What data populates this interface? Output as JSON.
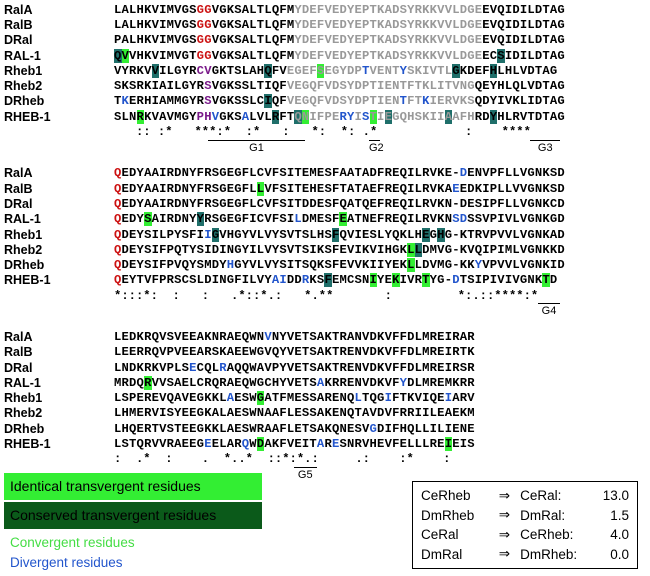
{
  "blocks": [
    {
      "rows": [
        {
          "name": "RalA",
          "seq": "LALHKVIMVGSGGVGKSALTLQFMYDEFVEDYEPTKADSYRKKVVLDGEEVQIDILDTAG"
        },
        {
          "name": "RalB",
          "seq": "LALHKVIMVGSGGVGKSALTLQFMYDEFVEDYEPTKADSYRKKVVLDGEEVQIDILDTAG"
        },
        {
          "name": "DRal",
          "seq": "PALHKVIMVGSGGVGKSALTLQFMYDEFVEDYEPTKADSYRKKVVLDGEEVQIDILDTAG"
        },
        {
          "name": "RAL-1",
          "seq": "QVVHKVIMVGTGGVGKSALTLQFMYDEFVEDYEPTKADSYRKKVVLDGEECSIDILDTAG"
        },
        {
          "name": "Rheb1",
          "seq": "VYRKVVILGYRCVGKTSLAHQFVEGEFSEGYDPTVENTYSKIVTLGKDEFHLHLVDTAG"
        },
        {
          "name": "Rheb2",
          "seq": "SKSRKIAILGYRSVGKSSLTIQFVEGQFVDSYDPTIENTFTKLITVNGQEYHLQLVDTAG"
        },
        {
          "name": "DRheb",
          "seq": "TKERHIAMMGYRSVGKSSLCIQFVEGQFVDSYDPTIENTFTKIERVKSQDYIVKLIDTAG"
        },
        {
          "name": "RHEB-1",
          "seq": "SLNRKVAVMGYPHVGKSALVLRFTQNIFPERYISTIEGQHSKIIAAFHRDYHLRVTDTAG"
        }
      ],
      "cons": "   :: :*   ***:*  :*   :   *:  *: .*            :    ****",
      "motifs": [
        "G1",
        "G2",
        "G3"
      ]
    },
    {
      "rows": [
        {
          "name": "RalA",
          "seq": "QEDYAAIRDNYFRSGEGFLCVFSITEMESFAATADFREQILRVKE-DENVPFLLVGNKSD"
        },
        {
          "name": "RalB",
          "seq": "QEDYAAIRDNYFRSGEGFLLVFSITEHESFTATAEFREQILRVKAEEDKIPLLVVGNKSD"
        },
        {
          "name": "DRal",
          "seq": "QEDYAAIRDNYFRSGEGFLCVFSITDDESFQATQEFREQILRVKN-DESIPFLLVGNKCD"
        },
        {
          "name": "RAL-1",
          "seq": "QEDYSAIRDNYYRSGEGFICVFSILDMESFEATNEFREQILRVKNSDSSVPIVLVGNKGD"
        },
        {
          "name": "Rheb1",
          "seq": "QDEYSILPYSFIIGVHGYVLVYSVTSLHSFQVIESLYQKLHEGHG-KTRVPVVLVGNKAD"
        },
        {
          "name": "Rheb2",
          "seq": "QDEYSIFPQTYSIDINGYILVYSVTSIKSFEVIKVIHGKLLDMVG-KVQIPIMLVGNKKD"
        },
        {
          "name": "DRheb",
          "seq": "QDEYSIFPVQYSMDYHGYVLVYSITSQKSFEVVKIIYEKLLDVMG-KKYVPVVLVGNKID"
        },
        {
          "name": "RHEB-1",
          "seq": "QEYTVFPRSCSLDINGFILVYAIDDRKSFEMCSNIYEKIVRTYG-DTSIPIVIVGNKTD"
        }
      ],
      "cons": "*:::*:  :   :   .*::*.:   *.**       :         *:.::****:*",
      "motifs": [
        "G4"
      ]
    },
    {
      "rows": [
        {
          "name": "RalA",
          "seq": "LEDKRQVSVEEAKNRAEQWNVNYVETSAKTRANVDKVFFDLMREIRAR"
        },
        {
          "name": "RalB",
          "seq": "LEERRQVPVEEARSKAEEWGVQYVETSAKTRENVDKVFFDLMREIRTK"
        },
        {
          "name": "DRal",
          "seq": "LNDKRKVPLSECQLRAQQWAVPYVETSAKTRENVDKVFFDLMREIRSR"
        },
        {
          "name": "RAL-1",
          "seq": "MRDQRVVSAELCRQRAEQWGCHYVETSAKRRENVDKVFYDLMREMKRR"
        },
        {
          "name": "Rheb1",
          "seq": "LSPEREVQAVEGKKLAESWGATFMESSARENQLTQGIFTKVIQEIARV"
        },
        {
          "name": "Rheb2",
          "seq": "LHMERVISYEEGKALAESWNAAFLESSAKENQTAVDVFRRIILEAEKM"
        },
        {
          "name": "DRheb",
          "seq": "LHQERTVSTEEGKKLAESWRAAFLETSAKQNESVGDIFHQLLILIENE"
        },
        {
          "name": "RHEB-1",
          "seq": "LSTQRVVRAEEGEELARQWDAKFVEITARESNRVHEVFELLLREIEIS"
        }
      ],
      "cons": ":  .*  :    .  *..*  ::*:*.:     .:    :*    :",
      "motifs": [
        "G5"
      ]
    }
  ],
  "legend": {
    "identical": "Identical transvergent residues",
    "conserved": "Conserved transvergent residues",
    "convergent": "Convergent residues",
    "divergent": "Divergent residues"
  },
  "ratios": [
    {
      "from": "CeRheb",
      "to": "CeRal:",
      "value": "13.0"
    },
    {
      "from": "DmRheb",
      "to": "DmRal:",
      "value": "1.5"
    },
    {
      "from": "CeRal",
      "to": "CeRheb:",
      "value": "4.0"
    },
    {
      "from": "DmRal",
      "to": "DmRheb:",
      "value": "0.0"
    }
  ],
  "colors": {
    "identical": "#33ee33",
    "conserved": "#0b5a1a",
    "convergent": "#44dd44",
    "divergent": "#2255cc",
    "ggred": "#cc1111",
    "grey": "#999999",
    "teal": "#1f6f6a"
  }
}
